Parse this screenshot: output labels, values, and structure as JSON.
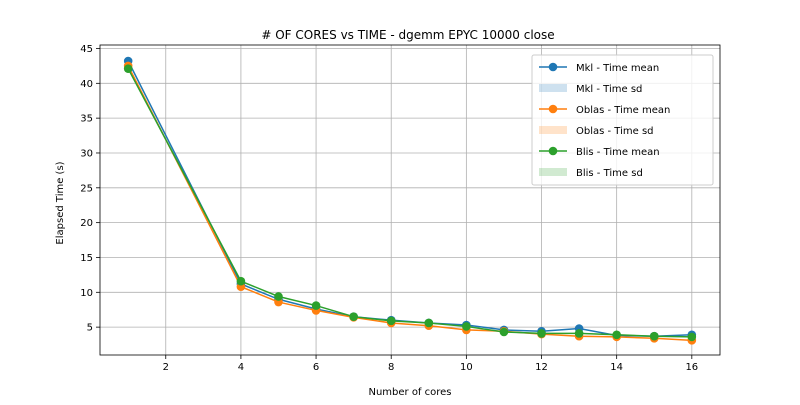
{
  "chart_data": {
    "type": "line",
    "title": "# OF CORES vs TIME - dgemm  EPYC 10000 close",
    "xlabel": "Number of cores",
    "ylabel": "Elapsed Time (s)",
    "xlim": [
      0.25,
      16.75
    ],
    "ylim": [
      1.0,
      45.5
    ],
    "xticks": [
      2,
      4,
      6,
      8,
      10,
      12,
      14,
      16
    ],
    "yticks": [
      5,
      10,
      15,
      20,
      25,
      30,
      35,
      40,
      45
    ],
    "grid": true,
    "legend_position": "top-right",
    "x": [
      1,
      4,
      5,
      6,
      7,
      8,
      9,
      10,
      11,
      12,
      13,
      14,
      15,
      16
    ],
    "series": [
      {
        "name": "Mkl - Time mean",
        "sd_name": "Mkl - Time sd",
        "color": "#1f77b4",
        "values": [
          43.2,
          11.2,
          9.0,
          7.6,
          6.5,
          6.0,
          5.6,
          5.3,
          4.6,
          4.4,
          4.8,
          3.8,
          3.7,
          3.9
        ]
      },
      {
        "name": "Oblas - Time mean",
        "sd_name": "Oblas - Time sd",
        "color": "#ff7f0e",
        "values": [
          42.5,
          10.8,
          8.6,
          7.4,
          6.4,
          5.6,
          5.2,
          4.6,
          4.4,
          4.0,
          3.7,
          3.6,
          3.4,
          3.1
        ]
      },
      {
        "name": "Blis - Time mean",
        "sd_name": "Blis - Time sd",
        "color": "#2ca02c",
        "values": [
          42.1,
          11.6,
          9.4,
          8.1,
          6.5,
          5.9,
          5.6,
          5.1,
          4.3,
          4.1,
          4.1,
          3.9,
          3.7,
          3.6
        ]
      }
    ]
  }
}
